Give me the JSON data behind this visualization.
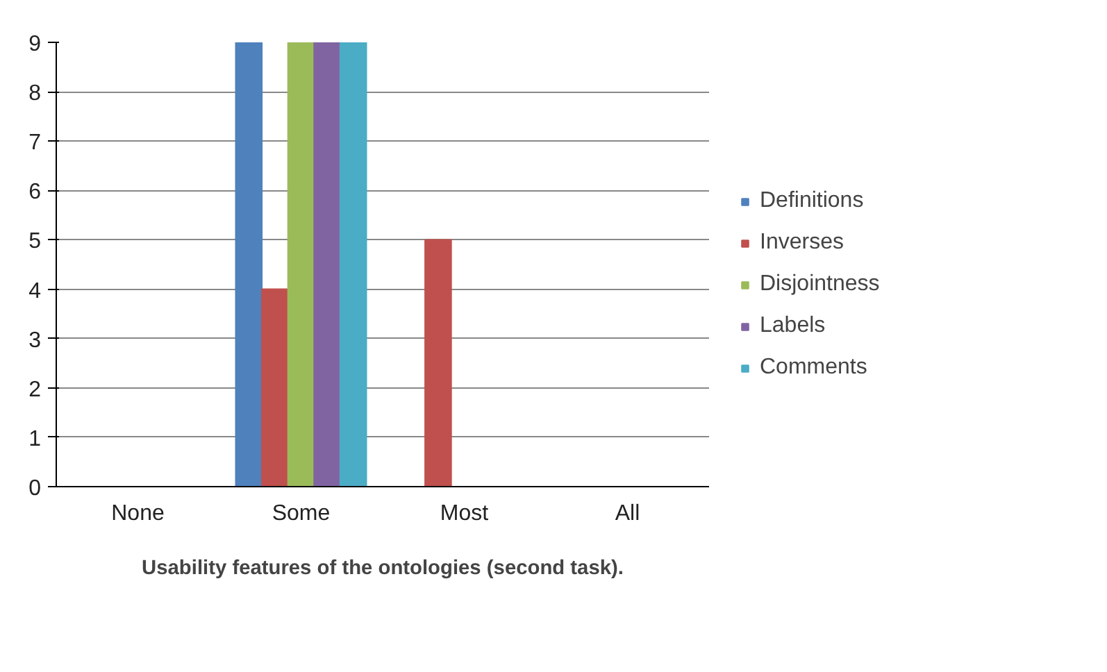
{
  "chart_data": {
    "type": "bar",
    "xlabel": "Usability features of the ontologies (second task).",
    "categories": [
      "None",
      "Some",
      "Most",
      "All"
    ],
    "series": [
      {
        "name": "Definitions",
        "color": "#4f81bd",
        "values": [
          0,
          9,
          0,
          0
        ]
      },
      {
        "name": "Inverses",
        "color": "#c0504d",
        "values": [
          0,
          4,
          5,
          0
        ]
      },
      {
        "name": "Disjointness",
        "color": "#9bbb59",
        "values": [
          0,
          9,
          0,
          0
        ]
      },
      {
        "name": "Labels",
        "color": "#8064a2",
        "values": [
          0,
          9,
          0,
          0
        ]
      },
      {
        "name": "Comments",
        "color": "#4bacc6",
        "values": [
          0,
          9,
          0,
          0
        ]
      }
    ],
    "ylim": [
      0,
      9
    ],
    "yticks": [
      0,
      1,
      2,
      3,
      4,
      5,
      6,
      7,
      8,
      9
    ],
    "grid": "y",
    "legend": "right"
  }
}
